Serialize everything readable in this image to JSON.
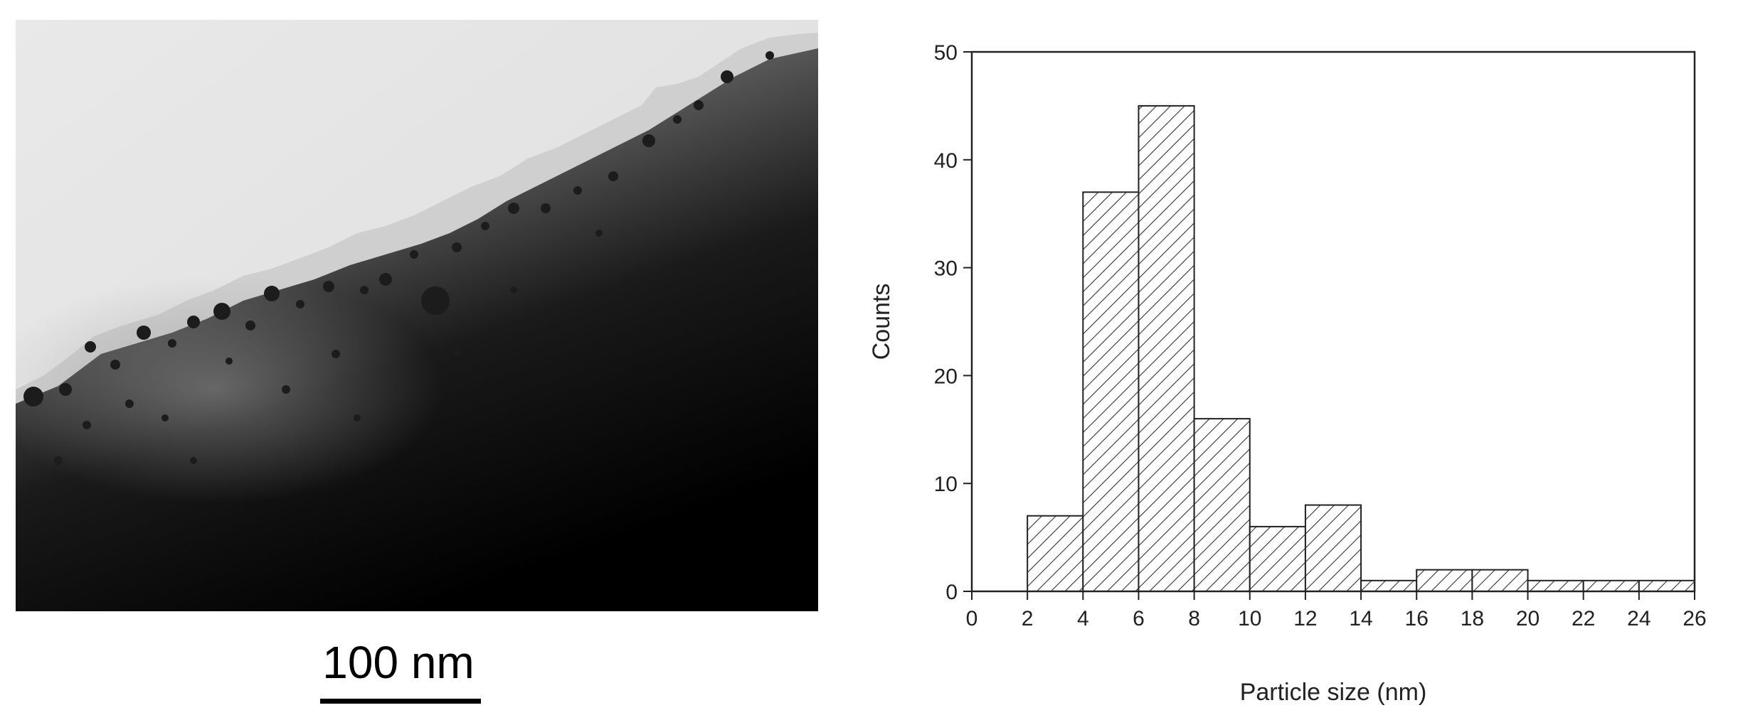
{
  "micrograph": {
    "scale_bar_label": "100 nm"
  },
  "chart_data": {
    "type": "bar",
    "xlabel": "Particle size (nm)",
    "ylabel": "Counts",
    "xlim": [
      0,
      26
    ],
    "ylim": [
      0,
      50
    ],
    "xticks": [
      0,
      2,
      4,
      6,
      8,
      10,
      12,
      14,
      16,
      18,
      20,
      22,
      24,
      26
    ],
    "yticks": [
      0,
      10,
      20,
      30,
      40,
      50
    ],
    "bins": [
      {
        "from": 2,
        "to": 4,
        "count": 7
      },
      {
        "from": 4,
        "to": 6,
        "count": 37
      },
      {
        "from": 6,
        "to": 8,
        "count": 45
      },
      {
        "from": 8,
        "to": 10,
        "count": 16
      },
      {
        "from": 10,
        "to": 12,
        "count": 6
      },
      {
        "from": 12,
        "to": 14,
        "count": 8
      },
      {
        "from": 14,
        "to": 16,
        "count": 1
      },
      {
        "from": 16,
        "to": 18,
        "count": 2
      },
      {
        "from": 18,
        "to": 20,
        "count": 2
      },
      {
        "from": 20,
        "to": 22,
        "count": 1
      },
      {
        "from": 22,
        "to": 24,
        "count": 1
      },
      {
        "from": 24,
        "to": 26,
        "count": 1
      }
    ],
    "bar_fill": "hatched",
    "grid": false
  }
}
